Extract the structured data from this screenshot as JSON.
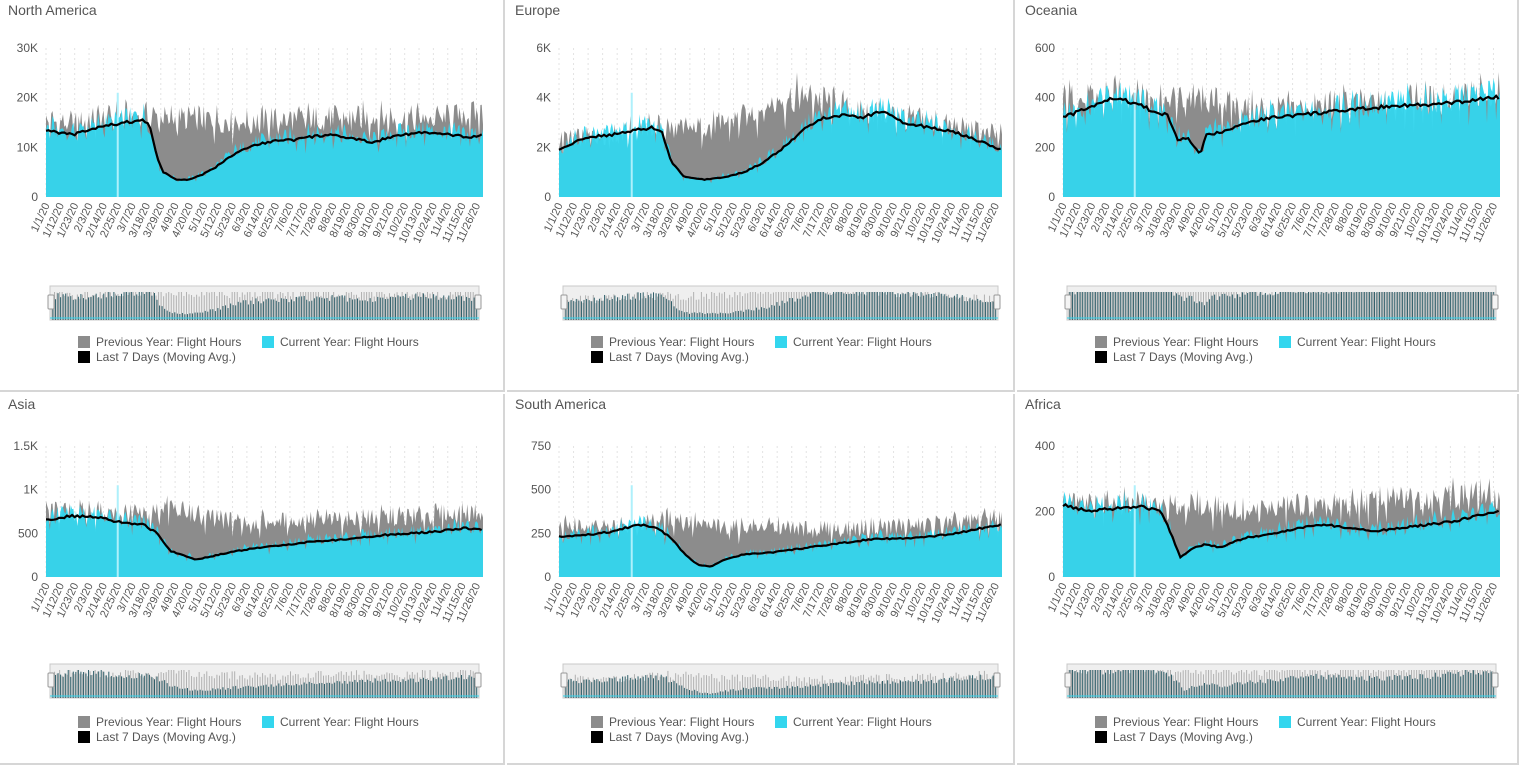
{
  "colors": {
    "previous": "#8c8c8c",
    "current": "#33d6ee",
    "moving_avg": "#000000",
    "navigator_bg": "#efefef",
    "navigator_bar": "#2f5f6a"
  },
  "legend": {
    "previous": "Previous Year: Flight Hours",
    "current": "Current Year: Flight Hours",
    "moving_avg": "Last 7 Days (Moving Avg.)"
  },
  "x_ticks": [
    "1/1/20",
    "1/12/20",
    "1/23/20",
    "2/3/20",
    "2/14/20",
    "2/25/20",
    "3/7/20",
    "3/18/20",
    "3/29/20",
    "4/9/20",
    "4/20/20",
    "5/1/20",
    "5/12/20",
    "5/23/20",
    "6/3/20",
    "6/14/20",
    "6/25/20",
    "7/6/20",
    "7/17/20",
    "7/28/20",
    "8/8/20",
    "8/19/20",
    "8/30/20",
    "9/10/20",
    "9/21/20",
    "10/2/20",
    "10/13/20",
    "10/24/20",
    "11/4/20",
    "11/15/20",
    "11/26/20"
  ],
  "chart_data": [
    {
      "type": "area",
      "title": "North America",
      "y_ticks": [
        "0",
        "10K",
        "20K",
        "30K"
      ],
      "ylim": [
        0,
        30000
      ],
      "x_range": [
        "1/1/20",
        "12/1/20"
      ],
      "series": [
        {
          "name": "Previous Year: Flight Hours",
          "key": "previous",
          "x": [
            0,
            20,
            40,
            60,
            75,
            80,
            95,
            110,
            130,
            150,
            170,
            190,
            210,
            230,
            250,
            270,
            290,
            310,
            335
          ],
          "values": [
            14500,
            14000,
            15000,
            15500,
            16000,
            15500,
            15000,
            15200,
            14800,
            14500,
            14700,
            15000,
            15200,
            15100,
            15300,
            15000,
            15200,
            15400,
            16000
          ]
        },
        {
          "name": "Current Year: Flight Hours",
          "key": "current",
          "x": [
            0,
            20,
            40,
            60,
            75,
            80,
            85,
            90,
            100,
            110,
            120,
            130,
            140,
            150,
            160,
            170,
            180,
            190,
            200,
            215,
            230,
            250,
            270,
            290,
            310,
            325,
            335
          ],
          "values": [
            13500,
            12500,
            14000,
            15000,
            15500,
            14000,
            8000,
            5000,
            3500,
            3500,
            4500,
            6000,
            8000,
            9500,
            10500,
            11000,
            11500,
            11500,
            12000,
            12500,
            12000,
            11000,
            12500,
            13000,
            12500,
            12000,
            12500
          ]
        },
        {
          "name": "Last 7 Days (Moving Avg.)",
          "key": "moving_avg",
          "x": [
            0,
            20,
            40,
            60,
            75,
            80,
            85,
            90,
            100,
            110,
            120,
            130,
            140,
            150,
            160,
            170,
            180,
            190,
            200,
            215,
            230,
            250,
            270,
            290,
            310,
            325,
            335
          ],
          "values": [
            13500,
            12500,
            14000,
            15000,
            15500,
            14000,
            8000,
            5000,
            3500,
            3500,
            4500,
            6000,
            8000,
            9500,
            10500,
            11000,
            11500,
            11500,
            12000,
            12500,
            12000,
            11000,
            12500,
            13000,
            12500,
            12000,
            12500
          ]
        }
      ]
    },
    {
      "type": "area",
      "title": "Europe",
      "y_ticks": [
        "0",
        "2K",
        "4K",
        "6K"
      ],
      "ylim": [
        0,
        6000
      ],
      "x_range": [
        "1/1/20",
        "12/1/20"
      ],
      "series": [
        {
          "name": "Previous Year: Flight Hours",
          "key": "previous",
          "x": [
            0,
            20,
            40,
            60,
            75,
            90,
            110,
            130,
            150,
            165,
            180,
            195,
            210,
            225,
            240,
            260,
            280,
            300,
            320,
            335
          ],
          "values": [
            2200,
            2300,
            2400,
            2600,
            2700,
            2600,
            2700,
            2900,
            3300,
            3700,
            3900,
            3800,
            3500,
            3200,
            3300,
            3100,
            2900,
            2700,
            2500,
            2300
          ]
        },
        {
          "name": "Current Year: Flight Hours",
          "key": "current",
          "x": [
            0,
            20,
            40,
            60,
            70,
            78,
            85,
            95,
            110,
            125,
            140,
            155,
            170,
            185,
            200,
            215,
            230,
            245,
            260,
            280,
            300,
            320,
            335
          ],
          "values": [
            1900,
            2400,
            2500,
            2700,
            2800,
            2600,
            1400,
            800,
            700,
            800,
            1000,
            1400,
            2000,
            2700,
            3200,
            3300,
            3200,
            3500,
            3000,
            2800,
            2600,
            2200,
            1900
          ]
        },
        {
          "name": "Last 7 Days (Moving Avg.)",
          "key": "moving_avg",
          "x": [
            0,
            20,
            40,
            60,
            70,
            78,
            85,
            95,
            110,
            125,
            140,
            155,
            170,
            185,
            200,
            215,
            230,
            245,
            260,
            280,
            300,
            320,
            335
          ],
          "values": [
            1900,
            2400,
            2500,
            2700,
            2800,
            2600,
            1400,
            800,
            700,
            800,
            1000,
            1400,
            2000,
            2700,
            3200,
            3300,
            3200,
            3500,
            3000,
            2800,
            2600,
            2200,
            1900
          ]
        }
      ]
    },
    {
      "type": "area",
      "title": "Oceania",
      "y_ticks": [
        "0",
        "200",
        "400",
        "600"
      ],
      "ylim": [
        0,
        600
      ],
      "x_range": [
        "1/1/20",
        "12/1/20"
      ],
      "series": [
        {
          "name": "Previous Year: Flight Hours",
          "key": "previous",
          "x": [
            0,
            20,
            40,
            60,
            80,
            100,
            120,
            140,
            160,
            180,
            200,
            220,
            240,
            260,
            280,
            300,
            320,
            335
          ],
          "values": [
            380,
            370,
            390,
            390,
            370,
            380,
            360,
            340,
            330,
            340,
            350,
            360,
            360,
            370,
            370,
            380,
            390,
            390
          ]
        },
        {
          "name": "Current Year: Flight Hours",
          "key": "current",
          "x": [
            0,
            20,
            40,
            60,
            70,
            80,
            88,
            95,
            105,
            110,
            120,
            140,
            160,
            180,
            200,
            220,
            240,
            260,
            280,
            300,
            315,
            325,
            335
          ],
          "values": [
            320,
            360,
            400,
            370,
            340,
            330,
            230,
            240,
            170,
            250,
            260,
            300,
            320,
            330,
            340,
            350,
            360,
            370,
            370,
            380,
            390,
            400,
            400
          ]
        },
        {
          "name": "Last 7 Days (Moving Avg.)",
          "key": "moving_avg",
          "x": [
            0,
            20,
            40,
            60,
            70,
            80,
            88,
            95,
            105,
            110,
            120,
            140,
            160,
            180,
            200,
            220,
            240,
            260,
            280,
            300,
            315,
            325,
            335
          ],
          "values": [
            320,
            360,
            400,
            370,
            340,
            330,
            230,
            240,
            170,
            250,
            260,
            300,
            320,
            330,
            340,
            350,
            360,
            370,
            370,
            380,
            390,
            400,
            400
          ]
        }
      ]
    },
    {
      "type": "area",
      "title": "Asia",
      "y_ticks": [
        "0",
        "500",
        "1K",
        "1.5K"
      ],
      "ylim": [
        0,
        1500
      ],
      "x_range": [
        "1/1/20",
        "12/1/20"
      ],
      "series": [
        {
          "name": "Previous Year: Flight Hours",
          "key": "previous",
          "x": [
            0,
            20,
            40,
            60,
            80,
            90,
            100,
            120,
            140,
            160,
            180,
            200,
            220,
            240,
            260,
            280,
            300,
            320,
            335
          ],
          "values": [
            720,
            700,
            710,
            690,
            660,
            780,
            740,
            650,
            620,
            600,
            610,
            620,
            630,
            640,
            650,
            660,
            680,
            700,
            720
          ]
        },
        {
          "name": "Current Year: Flight Hours",
          "key": "current",
          "x": [
            0,
            20,
            40,
            60,
            75,
            85,
            95,
            105,
            115,
            125,
            140,
            160,
            180,
            200,
            220,
            240,
            260,
            280,
            300,
            320,
            335
          ],
          "values": [
            650,
            700,
            680,
            620,
            600,
            500,
            300,
            250,
            200,
            230,
            280,
            330,
            360,
            400,
            420,
            450,
            480,
            500,
            520,
            560,
            540
          ]
        },
        {
          "name": "Last 7 Days (Moving Avg.)",
          "key": "moving_avg",
          "x": [
            0,
            20,
            40,
            60,
            75,
            85,
            95,
            105,
            115,
            125,
            140,
            160,
            180,
            200,
            220,
            240,
            260,
            280,
            300,
            320,
            335
          ],
          "values": [
            650,
            700,
            680,
            620,
            600,
            500,
            300,
            250,
            200,
            230,
            280,
            330,
            360,
            400,
            420,
            450,
            480,
            500,
            520,
            560,
            540
          ]
        }
      ]
    },
    {
      "type": "area",
      "title": "South America",
      "y_ticks": [
        "0",
        "250",
        "500",
        "750"
      ],
      "ylim": [
        0,
        750
      ],
      "x_range": [
        "1/1/20",
        "12/1/20"
      ],
      "series": [
        {
          "name": "Previous Year: Flight Hours",
          "key": "previous",
          "x": [
            0,
            20,
            40,
            60,
            75,
            90,
            110,
            130,
            150,
            170,
            190,
            210,
            230,
            250,
            270,
            290,
            310,
            325,
            335
          ],
          "values": [
            280,
            270,
            270,
            290,
            310,
            320,
            280,
            270,
            280,
            270,
            260,
            260,
            270,
            280,
            280,
            290,
            300,
            330,
            320
          ]
        },
        {
          "name": "Current Year: Flight Hours",
          "key": "current",
          "x": [
            0,
            20,
            40,
            60,
            75,
            85,
            95,
            105,
            115,
            125,
            140,
            160,
            180,
            200,
            220,
            240,
            260,
            280,
            300,
            320,
            335
          ],
          "values": [
            230,
            240,
            260,
            300,
            280,
            220,
            130,
            70,
            60,
            100,
            130,
            140,
            160,
            180,
            200,
            220,
            220,
            230,
            250,
            280,
            300
          ]
        },
        {
          "name": "Last 7 Days (Moving Avg.)",
          "key": "moving_avg",
          "x": [
            0,
            20,
            40,
            60,
            75,
            85,
            95,
            105,
            115,
            125,
            140,
            160,
            180,
            200,
            220,
            240,
            260,
            280,
            300,
            320,
            335
          ],
          "values": [
            230,
            240,
            260,
            300,
            280,
            220,
            130,
            70,
            60,
            100,
            130,
            140,
            160,
            180,
            200,
            220,
            220,
            230,
            250,
            280,
            300
          ]
        }
      ]
    },
    {
      "type": "area",
      "title": "Africa",
      "y_ticks": [
        "0",
        "200",
        "400"
      ],
      "ylim": [
        0,
        400
      ],
      "x_range": [
        "1/1/20",
        "12/1/20"
      ],
      "series": [
        {
          "name": "Previous Year: Flight Hours",
          "key": "previous",
          "x": [
            0,
            20,
            40,
            60,
            80,
            100,
            120,
            140,
            160,
            180,
            200,
            220,
            240,
            260,
            280,
            300,
            320,
            335
          ],
          "values": [
            220,
            210,
            220,
            215,
            200,
            210,
            200,
            190,
            200,
            210,
            200,
            210,
            220,
            230,
            230,
            240,
            240,
            230
          ]
        },
        {
          "name": "Current Year: Flight Hours",
          "key": "current",
          "x": [
            0,
            20,
            40,
            60,
            75,
            82,
            90,
            100,
            110,
            120,
            140,
            160,
            180,
            200,
            220,
            240,
            260,
            280,
            300,
            320,
            335
          ],
          "values": [
            220,
            200,
            210,
            215,
            200,
            140,
            60,
            90,
            100,
            90,
            120,
            130,
            150,
            160,
            150,
            140,
            150,
            160,
            170,
            190,
            200
          ]
        },
        {
          "name": "Last 7 Days (Moving Avg.)",
          "key": "moving_avg",
          "x": [
            0,
            20,
            40,
            60,
            75,
            82,
            90,
            100,
            110,
            120,
            140,
            160,
            180,
            200,
            220,
            240,
            260,
            280,
            300,
            320,
            335
          ],
          "values": [
            220,
            200,
            210,
            215,
            200,
            140,
            60,
            90,
            100,
            90,
            120,
            130,
            150,
            160,
            150,
            140,
            150,
            160,
            170,
            190,
            200
          ]
        }
      ]
    }
  ]
}
